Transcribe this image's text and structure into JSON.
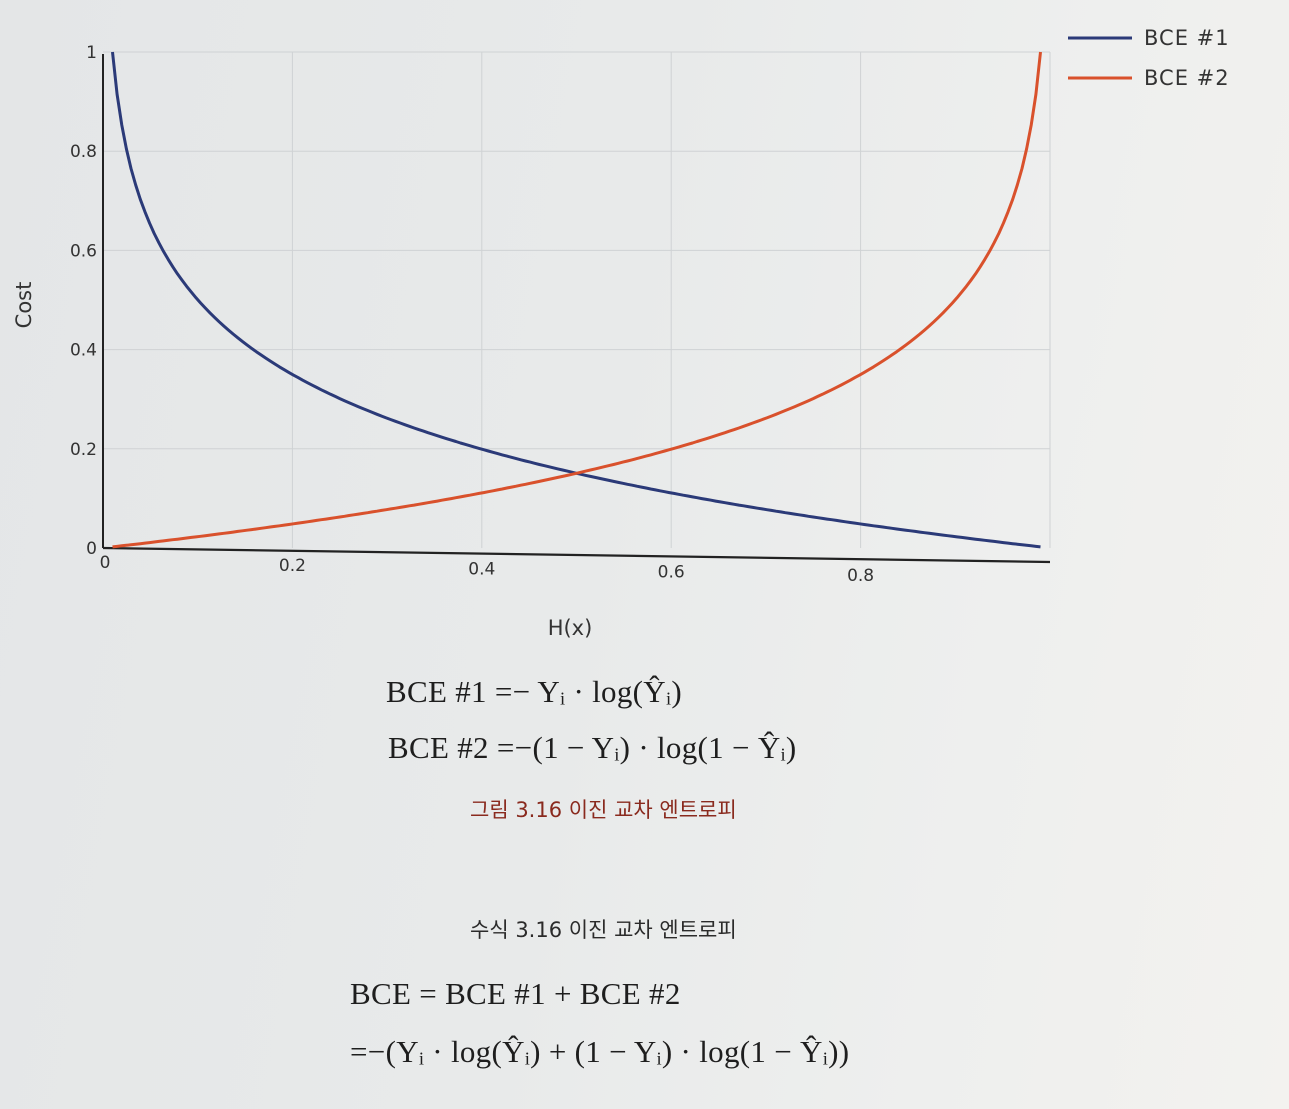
{
  "chart_data": {
    "type": "line",
    "xlabel": "H(x)",
    "ylabel": "Cost",
    "xlim": [
      0,
      1
    ],
    "ylim": [
      0,
      1
    ],
    "x_ticks": [
      "0",
      "0.2",
      "0.4",
      "0.6",
      "0.8"
    ],
    "y_ticks": [
      "0",
      "0.2",
      "0.4",
      "0.6",
      "0.8",
      "1"
    ],
    "grid": true,
    "legend_position": "top-right",
    "x": [
      0.01,
      0.05,
      0.1,
      0.2,
      0.3,
      0.4,
      0.5,
      0.6,
      0.7,
      0.8,
      0.9,
      0.95,
      0.99
    ],
    "series": [
      {
        "name": "BCE #1",
        "color": "#2b3a78",
        "values": [
          0.98,
          0.72,
          0.55,
          0.38,
          0.29,
          0.23,
          0.19,
          0.15,
          0.11,
          0.07,
          0.04,
          0.02,
          0.0
        ]
      },
      {
        "name": "BCE #2",
        "color": "#d9512c",
        "values": [
          0.0,
          0.02,
          0.04,
          0.07,
          0.11,
          0.15,
          0.19,
          0.23,
          0.29,
          0.38,
          0.55,
          0.72,
          0.98
        ]
      }
    ]
  },
  "equations": {
    "bce1": "BCE #1 =− Yᵢ · log(Ŷᵢ)",
    "bce2": "BCE #2 =−(1 − Yᵢ) · log(1 − Ŷᵢ)",
    "bce_sum": "BCE = BCE #1 + BCE #2",
    "bce_full": "=−(Yᵢ · log(Ŷᵢ) + (1 − Yᵢ) · log(1 − Ŷᵢ))"
  },
  "captions": {
    "figure": "그림 3.16 이진 교차 엔트로피",
    "equation": "수식 3.16 이진 교차 엔트로피"
  }
}
